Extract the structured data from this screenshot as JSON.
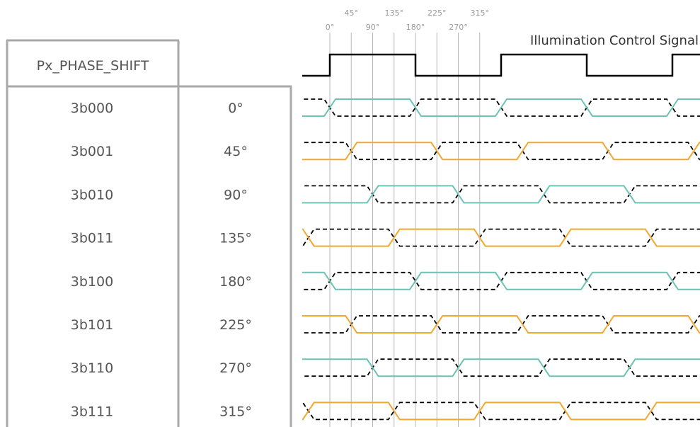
{
  "table": {
    "header": "Px_PHASE_SHIFT",
    "rows": [
      {
        "code": "3b000",
        "phase": "0°"
      },
      {
        "code": "3b001",
        "phase": "45°"
      },
      {
        "code": "3b010",
        "phase": "90°"
      },
      {
        "code": "3b011",
        "phase": "135°"
      },
      {
        "code": "3b100",
        "phase": "180°"
      },
      {
        "code": "3b101",
        "phase": "225°"
      },
      {
        "code": "3b110",
        "phase": "270°"
      },
      {
        "code": "3b111",
        "phase": "315°"
      }
    ]
  },
  "timing": {
    "title": "Illumination Control Signal",
    "angle_labels": [
      "0°",
      "45°",
      "90°",
      "135°",
      "180°",
      "225°",
      "270°",
      "315°"
    ],
    "angles_deg": [
      0,
      45,
      90,
      135,
      180,
      225,
      270,
      315
    ],
    "row_color_sequence": [
      "teal",
      "orange",
      "teal",
      "orange",
      "teal",
      "orange",
      "teal",
      "orange"
    ],
    "colors": {
      "teal": "#6cc2b4",
      "orange": "#f0a830",
      "clock": "#000000",
      "dashed": "#000000",
      "gridline": "#b8b8b8",
      "table_border": "#a8a8a8",
      "text": "#555555",
      "angle_text": "#9a9a9a"
    }
  }
}
